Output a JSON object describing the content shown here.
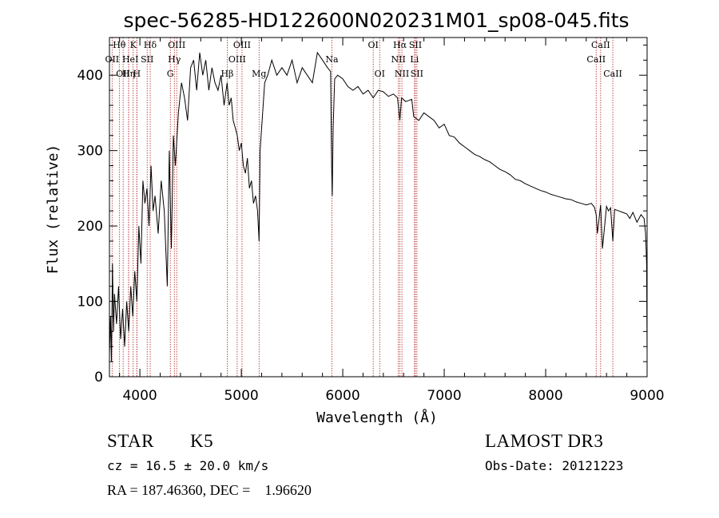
{
  "chart_data": {
    "type": "line",
    "title": "spec-56285-HD122600N020231M01_sp08-045.fits",
    "xlabel": "Wavelength (Å)",
    "ylabel": "Flux (relative)",
    "xlim": [
      3700,
      9000
    ],
    "ylim": [
      0,
      450
    ],
    "xticks": [
      4000,
      5000,
      6000,
      7000,
      8000,
      9000
    ],
    "yticks": [
      0,
      100,
      200,
      300,
      400
    ],
    "series": [
      {
        "name": "flux",
        "x": [
          3700,
          3710,
          3720,
          3730,
          3740,
          3750,
          3770,
          3790,
          3810,
          3830,
          3850,
          3870,
          3890,
          3910,
          3930,
          3950,
          3970,
          3990,
          4010,
          4030,
          4050,
          4070,
          4090,
          4110,
          4130,
          4150,
          4180,
          4210,
          4240,
          4270,
          4290,
          4310,
          4330,
          4350,
          4380,
          4410,
          4440,
          4470,
          4500,
          4530,
          4560,
          4590,
          4620,
          4650,
          4680,
          4710,
          4740,
          4770,
          4800,
          4830,
          4860,
          4880,
          4900,
          4920,
          4940,
          4960,
          4980,
          5000,
          5020,
          5040,
          5060,
          5080,
          5100,
          5120,
          5140,
          5160,
          5175,
          5185,
          5200,
          5230,
          5260,
          5300,
          5350,
          5400,
          5450,
          5500,
          5550,
          5600,
          5650,
          5700,
          5750,
          5800,
          5850,
          5880,
          5890,
          5896,
          5905,
          5920,
          5950,
          6000,
          6050,
          6100,
          6150,
          6200,
          6250,
          6300,
          6350,
          6400,
          6450,
          6500,
          6540,
          6563,
          6580,
          6620,
          6680,
          6700,
          6750,
          6800,
          6850,
          6900,
          6950,
          7000,
          7050,
          7100,
          7150,
          7200,
          7250,
          7300,
          7350,
          7400,
          7450,
          7500,
          7550,
          7600,
          7650,
          7700,
          7750,
          7800,
          7850,
          7900,
          7950,
          8000,
          8050,
          8100,
          8150,
          8200,
          8250,
          8300,
          8350,
          8400,
          8450,
          8480,
          8498,
          8510,
          8542,
          8560,
          8600,
          8620,
          8640,
          8662,
          8680,
          8720,
          8760,
          8800,
          8830,
          8860,
          8900,
          8940,
          8970,
          8985,
          8995,
          9000
        ],
        "values": [
          30,
          80,
          20,
          150,
          60,
          110,
          70,
          120,
          50,
          90,
          40,
          100,
          60,
          120,
          80,
          140,
          100,
          200,
          150,
          260,
          230,
          250,
          200,
          280,
          220,
          240,
          190,
          260,
          220,
          120,
          300,
          170,
          320,
          280,
          350,
          390,
          370,
          340,
          410,
          420,
          380,
          430,
          400,
          420,
          380,
          410,
          390,
          380,
          400,
          360,
          390,
          360,
          370,
          340,
          330,
          320,
          300,
          310,
          280,
          270,
          290,
          250,
          260,
          230,
          240,
          220,
          180,
          300,
          330,
          390,
          400,
          420,
          400,
          410,
          400,
          420,
          390,
          410,
          400,
          390,
          430,
          420,
          410,
          405,
          280,
          240,
          330,
          395,
          400,
          395,
          385,
          380,
          385,
          375,
          380,
          370,
          380,
          378,
          372,
          375,
          370,
          340,
          370,
          365,
          368,
          345,
          340,
          350,
          345,
          340,
          330,
          335,
          320,
          318,
          310,
          305,
          300,
          295,
          292,
          288,
          285,
          280,
          275,
          272,
          268,
          262,
          260,
          256,
          253,
          250,
          247,
          245,
          242,
          240,
          238,
          236,
          235,
          232,
          230,
          228,
          230,
          225,
          215,
          190,
          228,
          170,
          226,
          220,
          224,
          180,
          222,
          220,
          218,
          216,
          210,
          218,
          205,
          215,
          210,
          190,
          150,
          30
        ]
      }
    ],
    "lines": [
      {
        "x": 3797,
        "label": "Hθ",
        "row": 0
      },
      {
        "x": 3726,
        "label": "OII",
        "row": 1
      },
      {
        "x": 3835,
        "label": "OII",
        "row": 2
      },
      {
        "x": 3889,
        "label": "He",
        "row": 1
      },
      {
        "x": 3889,
        "label": "Hη",
        "row": 2
      },
      {
        "x": 3934,
        "label": "K",
        "row": 0
      },
      {
        "x": 3970,
        "label": "I",
        "row": 1
      },
      {
        "x": 3970,
        "label": "H",
        "row": 2
      },
      {
        "x": 4102,
        "label": "Hδ",
        "row": 0
      },
      {
        "x": 4072,
        "label": "SII",
        "row": 1
      },
      {
        "x": 4300,
        "label": "G",
        "row": 2
      },
      {
        "x": 4340,
        "label": "Hγ",
        "row": 1
      },
      {
        "x": 4363,
        "label": "OIII",
        "row": 0
      },
      {
        "x": 4861,
        "label": "Hβ",
        "row": 2
      },
      {
        "x": 4959,
        "label": "OIII",
        "row": 1
      },
      {
        "x": 5007,
        "label": "OIII",
        "row": 0
      },
      {
        "x": 5175,
        "label": "Mg",
        "row": 2
      },
      {
        "x": 5893,
        "label": "Na",
        "row": 1
      },
      {
        "x": 6300,
        "label": "OI",
        "row": 0
      },
      {
        "x": 6364,
        "label": "OI",
        "row": 2
      },
      {
        "x": 6548,
        "label": "NII",
        "row": 1
      },
      {
        "x": 6563,
        "label": "Hα",
        "row": 0
      },
      {
        "x": 6583,
        "label": "NII",
        "row": 2
      },
      {
        "x": 6707,
        "label": "Li",
        "row": 1
      },
      {
        "x": 6716,
        "label": "SII",
        "row": 0
      },
      {
        "x": 6731,
        "label": "SII",
        "row": 2
      },
      {
        "x": 8498,
        "label": "CaII",
        "row": 1
      },
      {
        "x": 8542,
        "label": "CaII",
        "row": 0
      },
      {
        "x": 8662,
        "label": "CaII",
        "row": 2
      }
    ],
    "line_color": "#b22222"
  },
  "info": {
    "object_type": "STAR",
    "subclass": "K5",
    "survey": "LAMOST DR3",
    "redshift": "cz = 16.5 ± 20.0 km/s",
    "obs_date": "Obs-Date: 20121223",
    "coords": "RA = 187.46360, DEC =    1.96620"
  }
}
